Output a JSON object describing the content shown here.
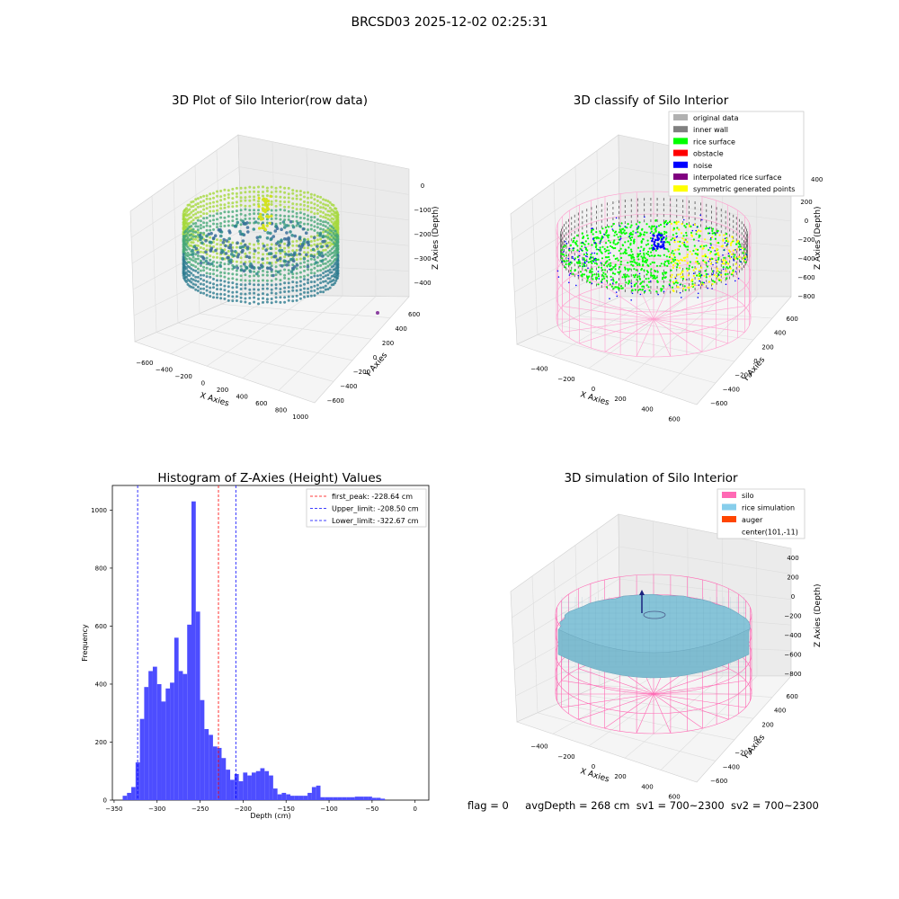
{
  "suptitle": "BRCSD03 2025-12-02 02:25:31",
  "panels": {
    "raw": {
      "title": "3D Plot of Silo Interior(row data)",
      "xlabel": "X Axies",
      "ylabel": "Y Axies",
      "zlabel": "Z Axies (Depth)",
      "xticks": [
        "−600",
        "−400",
        "−200",
        "0",
        "200",
        "400",
        "600",
        "800",
        "1000"
      ],
      "yticks": [
        "−600",
        "−400",
        "−200",
        "0",
        "200",
        "400",
        "600"
      ],
      "zticks": [
        "0",
        "−100",
        "−200",
        "−300",
        "−400"
      ]
    },
    "classify": {
      "title": "3D classify of Silo Interior",
      "xlabel": "X Axies",
      "ylabel": "Y Axies",
      "zlabel": "Z Axies (Depth)",
      "xticks": [
        "−400",
        "−200",
        "0",
        "200",
        "400",
        "600"
      ],
      "yticks": [
        "−600",
        "−400",
        "−200",
        "0",
        "200",
        "400",
        "600"
      ],
      "zticks": [
        "200",
        "0",
        "−200",
        "−400",
        "−600",
        "−800"
      ],
      "legend": [
        {
          "label": "original data",
          "color": "#b0b0b0"
        },
        {
          "label": "inner wall",
          "color": "#808080"
        },
        {
          "label": "rice surface",
          "color": "#00ff00"
        },
        {
          "label": "obstacle",
          "color": "#ff0000"
        },
        {
          "label": "noise",
          "color": "#0000ff"
        },
        {
          "label": "interpolated rice surface",
          "color": "#800080"
        },
        {
          "label": "symmetric generated points",
          "color": "#ffff00"
        }
      ],
      "top_tick": "400"
    },
    "simulation": {
      "title": "3D simulation of Silo Interior",
      "xlabel": "X Axies",
      "ylabel": "Y Axies",
      "zlabel": "Z Axies (Depth)",
      "xticks": [
        "−400",
        "−200",
        "0",
        "200",
        "400",
        "600"
      ],
      "yticks": [
        "−600",
        "−400",
        "−200",
        "0",
        "200",
        "400",
        "600"
      ],
      "zticks": [
        "400",
        "200",
        "0",
        "−200",
        "−400",
        "−600",
        "−800"
      ],
      "legend": [
        {
          "label": "silo",
          "color": "#ff69b4"
        },
        {
          "label": "rice simulation",
          "color": "#87ceeb"
        },
        {
          "label": "auger",
          "color": "#ff4500"
        },
        {
          "label": "center(101,-11)",
          "color": ""
        }
      ]
    }
  },
  "chart_data": [
    {
      "type": "scatter",
      "title": "3D Plot of Silo Interior(row data)",
      "xlabel": "X Axies",
      "ylabel": "Y Axies",
      "zlabel": "Z Axies (Depth)",
      "xlim": [
        -650,
        1050
      ],
      "ylim": [
        -650,
        650
      ],
      "zlim": [
        -480,
        20
      ],
      "grid": true
    },
    {
      "type": "scatter",
      "title": "3D classify of Silo Interior",
      "xlabel": "X Axies",
      "ylabel": "Y Axies",
      "zlabel": "Z Axies (Depth)",
      "series": [
        {
          "name": "original data"
        },
        {
          "name": "inner wall"
        },
        {
          "name": "rice surface"
        },
        {
          "name": "obstacle"
        },
        {
          "name": "noise"
        },
        {
          "name": "interpolated rice surface"
        },
        {
          "name": "symmetric generated points"
        }
      ],
      "legend": "top-right",
      "grid": true
    },
    {
      "type": "bar",
      "title": "Histogram of Z-Axies (Height) Values",
      "xlabel": "Depth (cm)",
      "ylabel": "Frequency",
      "xlim": [
        -352,
        16
      ],
      "ylim": [
        0,
        1085
      ],
      "xticks": [
        -350,
        -300,
        -250,
        -200,
        -150,
        -100,
        -50,
        0
      ],
      "yticks": [
        0,
        200,
        400,
        600,
        800,
        1000
      ],
      "bin_width": 5,
      "bins": [
        [
          -340,
          15
        ],
        [
          -335,
          25
        ],
        [
          -330,
          45
        ],
        [
          -325,
          130
        ],
        [
          -320,
          280
        ],
        [
          -315,
          390
        ],
        [
          -310,
          445
        ],
        [
          -305,
          460
        ],
        [
          -300,
          400
        ],
        [
          -295,
          340
        ],
        [
          -290,
          385
        ],
        [
          -285,
          405
        ],
        [
          -280,
          560
        ],
        [
          -275,
          445
        ],
        [
          -270,
          435
        ],
        [
          -265,
          605
        ],
        [
          -260,
          1030
        ],
        [
          -255,
          650
        ],
        [
          -250,
          345
        ],
        [
          -245,
          245
        ],
        [
          -240,
          225
        ],
        [
          -235,
          185
        ],
        [
          -230,
          180
        ],
        [
          -225,
          145
        ],
        [
          -220,
          105
        ],
        [
          -215,
          70
        ],
        [
          -210,
          90
        ],
        [
          -205,
          65
        ],
        [
          -200,
          95
        ],
        [
          -195,
          85
        ],
        [
          -190,
          95
        ],
        [
          -185,
          100
        ],
        [
          -180,
          110
        ],
        [
          -175,
          100
        ],
        [
          -170,
          85
        ],
        [
          -165,
          40
        ],
        [
          -160,
          20
        ],
        [
          -155,
          25
        ],
        [
          -150,
          20
        ],
        [
          -145,
          15
        ],
        [
          -140,
          15
        ],
        [
          -135,
          15
        ],
        [
          -130,
          15
        ],
        [
          -125,
          25
        ],
        [
          -120,
          45
        ],
        [
          -115,
          50
        ],
        [
          -110,
          10
        ],
        [
          -105,
          10
        ],
        [
          -100,
          10
        ],
        [
          -95,
          10
        ],
        [
          -90,
          10
        ],
        [
          -85,
          10
        ],
        [
          -80,
          10
        ],
        [
          -75,
          10
        ],
        [
          -70,
          12
        ],
        [
          -65,
          12
        ],
        [
          -60,
          12
        ],
        [
          -55,
          12
        ],
        [
          -50,
          8
        ],
        [
          -45,
          8
        ],
        [
          -40,
          5
        ]
      ],
      "vlines": [
        {
          "x": -228.64,
          "label": "first_peak: -228.64 cm",
          "color": "#ff0000"
        },
        {
          "x": -208.5,
          "label": "Upper_limit: -208.50 cm",
          "color": "#0000ff"
        },
        {
          "x": -322.67,
          "label": "Lower_limit: -322.67 cm",
          "color": "#0000ff"
        }
      ],
      "bar_color": "#4d4dff",
      "legend": "top-right"
    },
    {
      "type": "other",
      "title": "3D simulation of Silo Interior",
      "series": [
        {
          "name": "silo"
        },
        {
          "name": "rice simulation"
        },
        {
          "name": "auger"
        },
        {
          "name": "center(101,-11)"
        }
      ],
      "legend": "top-right"
    }
  ],
  "histogram": {
    "title": "Histogram of Z-Axies (Height) Values",
    "xlabel": "Depth (cm)",
    "ylabel": "Frequency"
  },
  "footer": {
    "flag": "flag = 0",
    "avg": "avgDepth = 268 cm",
    "sv1": "sv1 = 700~2300",
    "sv2": "sv2 = 700~2300"
  }
}
